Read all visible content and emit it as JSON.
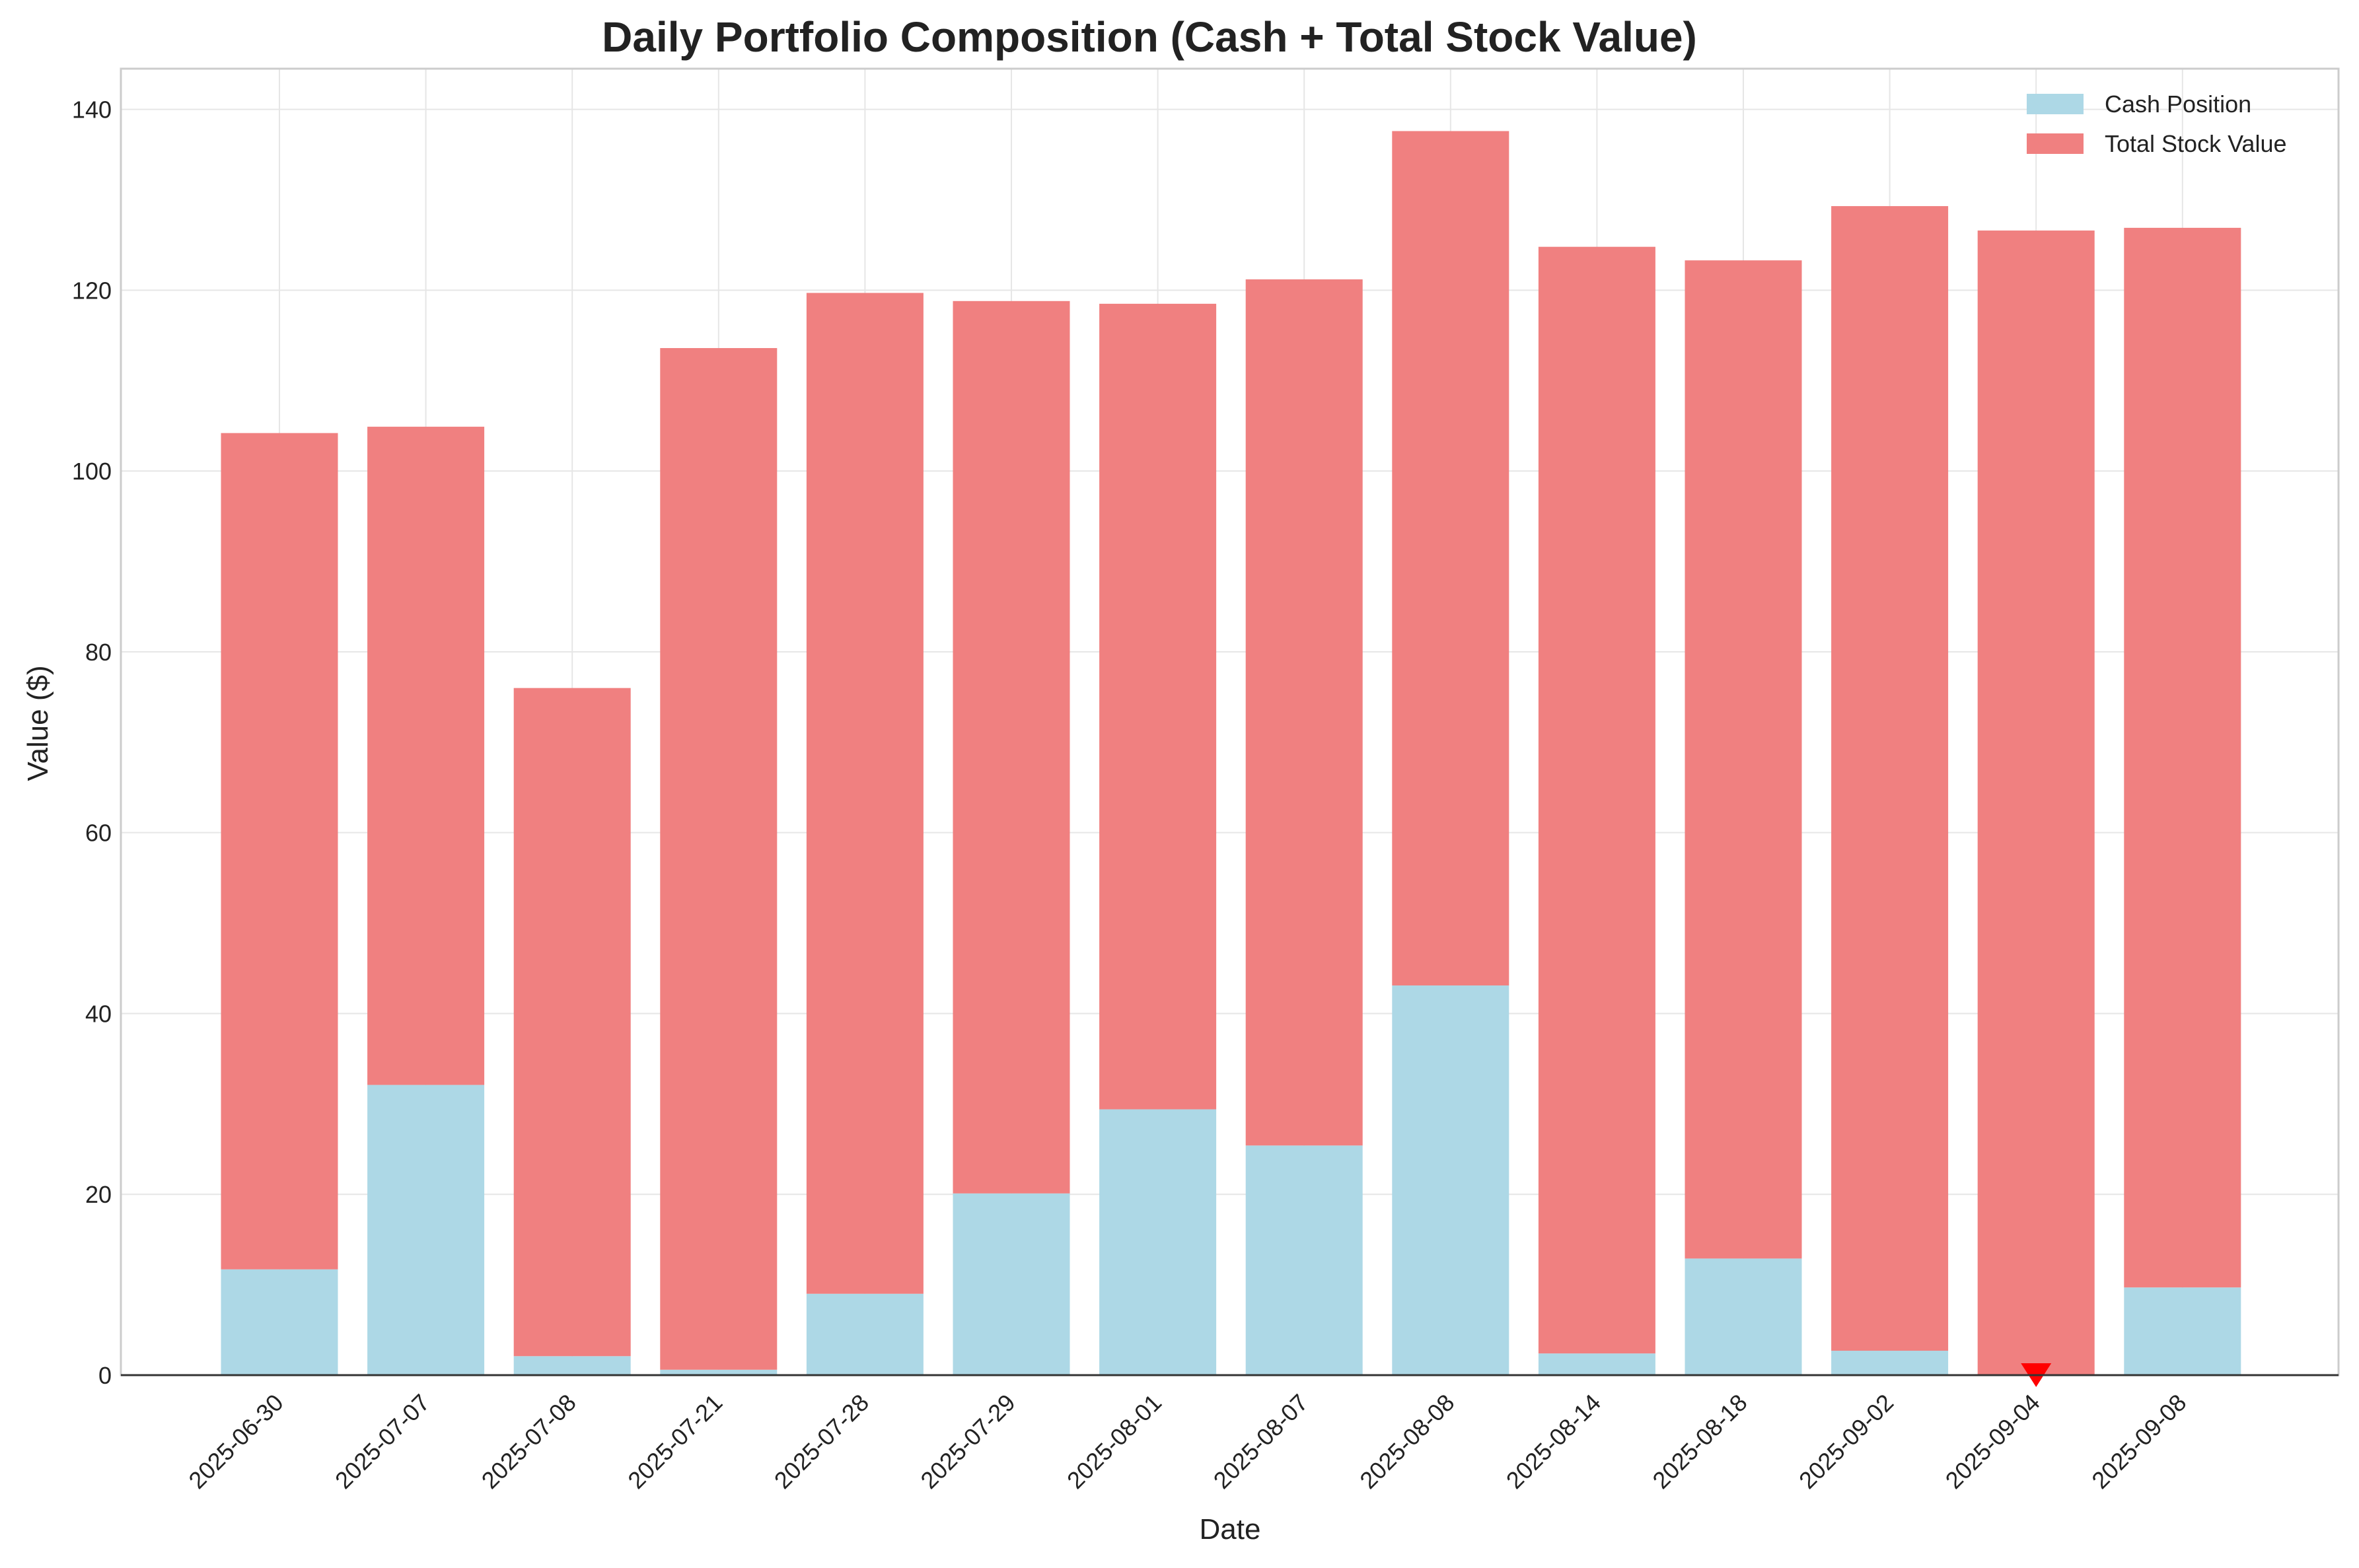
{
  "chart_data": {
    "type": "bar",
    "stacked": true,
    "title": "Daily Portfolio Composition (Cash + Total Stock Value)",
    "xlabel": "Date",
    "ylabel": "Value ($)",
    "ylim": [
      0,
      144.5
    ],
    "yticks": [
      0,
      20,
      40,
      60,
      80,
      100,
      120,
      140
    ],
    "grid": true,
    "legend_position": "top-right",
    "categories": [
      "2025-06-30",
      "2025-07-07",
      "2025-07-08",
      "2025-07-21",
      "2025-07-28",
      "2025-07-29",
      "2025-08-01",
      "2025-08-07",
      "2025-08-08",
      "2025-08-14",
      "2025-08-18",
      "2025-09-02",
      "2025-09-04",
      "2025-09-08"
    ],
    "series": [
      {
        "name": "Cash Position",
        "color": "#add8e6",
        "values": [
          11.7,
          32.1,
          2.1,
          0.6,
          9.0,
          20.1,
          29.4,
          25.4,
          43.1,
          2.4,
          12.9,
          2.7,
          0.0,
          9.7
        ]
      },
      {
        "name": "Total Stock Value",
        "color": "#f08080",
        "values": [
          92.5,
          72.8,
          73.9,
          113.0,
          110.7,
          98.7,
          89.1,
          95.8,
          94.5,
          122.4,
          110.4,
          126.6,
          126.6,
          117.2
        ]
      }
    ],
    "markers": [
      {
        "category": "2025-09-04",
        "value": 0,
        "shape": "triangle-down",
        "color": "#ff0000"
      }
    ]
  }
}
